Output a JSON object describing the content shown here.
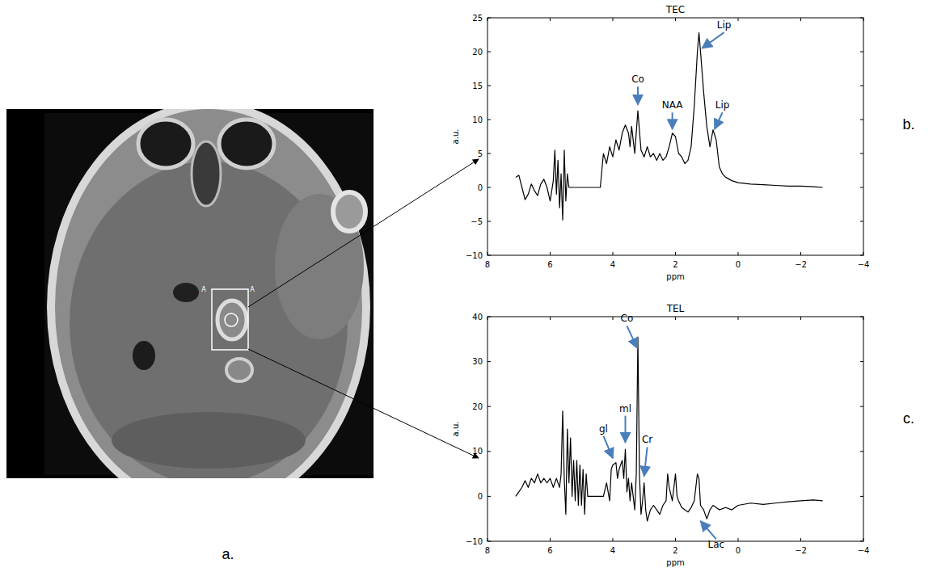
{
  "chart_data": [
    {
      "type": "line",
      "title": "TEC",
      "x_label": "ppm",
      "y_label": "a.u.",
      "color": "#000000",
      "grid": false,
      "xlim": [
        8,
        -4
      ],
      "ylim": [
        -10,
        25
      ],
      "xticks": [
        8,
        6,
        4,
        2,
        0,
        {
          "value": -2,
          "label": "−2"
        },
        {
          "value": -4,
          "label": "−4"
        }
      ],
      "yticks": [
        {
          "value": -10,
          "label": "−10"
        },
        {
          "value": -5,
          "label": "−5"
        },
        0,
        5,
        10,
        15,
        20,
        25
      ],
      "x": [
        7.1,
        7.0,
        6.9,
        6.8,
        6.7,
        6.6,
        6.5,
        6.4,
        6.3,
        6.2,
        6.1,
        6.0,
        5.9,
        5.85,
        5.8,
        5.75,
        5.7,
        5.65,
        5.6,
        5.55,
        5.5,
        5.45,
        5.4,
        4.4,
        4.3,
        4.2,
        4.1,
        4.0,
        3.9,
        3.8,
        3.7,
        3.6,
        3.5,
        3.45,
        3.4,
        3.3,
        3.2,
        3.1,
        3.0,
        2.9,
        2.8,
        2.7,
        2.6,
        2.5,
        2.4,
        2.3,
        2.2,
        2.1,
        2.0,
        1.9,
        1.8,
        1.7,
        1.6,
        1.5,
        1.4,
        1.3,
        1.25,
        1.2,
        1.1,
        1.0,
        0.9,
        0.8,
        0.7,
        0.6,
        0.5,
        0.4,
        0.2,
        0,
        -0.4,
        -0.8,
        -1.2,
        -1.6,
        -2.0,
        -2.4,
        -2.7
      ],
      "values": [
        1.5,
        1.8,
        0,
        -1.8,
        -1,
        0.5,
        -0.5,
        -1.2,
        0.5,
        1.2,
        0,
        -2,
        1,
        5.5,
        -1,
        4,
        -3,
        2,
        -4.8,
        5.5,
        -2,
        2,
        0,
        0,
        5,
        3.5,
        6,
        4.5,
        7,
        5.5,
        8,
        9.2,
        8,
        6,
        9,
        5,
        11.3,
        5.5,
        4.5,
        6,
        4.5,
        5,
        4,
        5,
        4,
        4.5,
        6,
        8,
        7.5,
        5,
        4.5,
        3.5,
        4,
        6,
        12,
        20,
        22.8,
        20,
        14,
        9,
        6,
        8.5,
        7,
        3,
        2,
        1.5,
        1,
        0.7,
        0.5,
        0.4,
        0.3,
        0.2,
        0.2,
        0.1,
        0
      ],
      "annotations": [
        {
          "text": "Co",
          "x": 3.2,
          "y": 12.2,
          "xytext": [
            3.2,
            15.2
          ]
        },
        {
          "text": "NAA",
          "x": 2.1,
          "y": 8.6,
          "xytext": [
            2.1,
            11.4
          ]
        },
        {
          "text": "Lip",
          "x": 1.15,
          "y": 20.5,
          "xytext": [
            0.45,
            23.2
          ]
        },
        {
          "text": "Lip",
          "x": 0.75,
          "y": 8.6,
          "xytext": [
            0.5,
            11.4
          ]
        }
      ]
    },
    {
      "type": "line",
      "title": "TEL",
      "x_label": "ppm",
      "y_label": "a.u.",
      "color": "#000000",
      "grid": false,
      "xlim": [
        8,
        -4
      ],
      "ylim": [
        -10,
        40
      ],
      "xticks": [
        8,
        6,
        4,
        2,
        0,
        {
          "value": -2,
          "label": "−2"
        },
        {
          "value": -4,
          "label": "−4"
        }
      ],
      "yticks": [
        {
          "value": -10,
          "label": "−10"
        },
        0,
        10,
        20,
        30,
        40
      ],
      "x": [
        7.1,
        7.0,
        6.9,
        6.8,
        6.7,
        6.6,
        6.5,
        6.4,
        6.3,
        6.2,
        6.1,
        6.0,
        5.9,
        5.8,
        5.7,
        5.65,
        5.6,
        5.55,
        5.5,
        5.45,
        5.4,
        5.35,
        5.3,
        5.25,
        5.2,
        5.15,
        5.1,
        5.05,
        5.0,
        4.95,
        4.9,
        4.85,
        4.8,
        4.3,
        4.2,
        4.1,
        4.05,
        4.0,
        3.9,
        3.85,
        3.8,
        3.7,
        3.65,
        3.6,
        3.55,
        3.5,
        3.45,
        3.4,
        3.3,
        3.25,
        3.2,
        3.15,
        3.1,
        3.05,
        3.0,
        2.95,
        2.9,
        2.8,
        2.7,
        2.6,
        2.5,
        2.4,
        2.3,
        2.25,
        2.2,
        2.1,
        2.0,
        1.95,
        1.9,
        1.8,
        1.7,
        1.6,
        1.5,
        1.4,
        1.3,
        1.25,
        1.2,
        1.1,
        1.0,
        0.9,
        0.8,
        0.6,
        0.4,
        0.2,
        0,
        -0.4,
        -0.8,
        -1.2,
        -1.6,
        -2.0,
        -2.4,
        -2.7
      ],
      "values": [
        0,
        1,
        2,
        3.5,
        2,
        4,
        3,
        5,
        3,
        4,
        3,
        4,
        2,
        4,
        2,
        5,
        19,
        4,
        -4,
        15,
        3,
        13,
        0,
        8,
        -1,
        8,
        -2,
        7,
        -2,
        6,
        -4,
        5,
        0,
        0,
        3,
        -1,
        6,
        7,
        7.5,
        4,
        6,
        8,
        4,
        10.5,
        1,
        4,
        -1,
        3,
        -3,
        5,
        35.5,
        5,
        -4,
        -1,
        3,
        -3,
        -5.5,
        -3,
        -2,
        -3,
        -4,
        -2,
        -1,
        5,
        2,
        -1,
        5,
        0,
        -1,
        -2.5,
        -3,
        -3.5,
        -2.5,
        -1,
        5,
        4,
        -2,
        -3,
        -5,
        -3,
        -2,
        -3,
        -2.5,
        -3,
        -2,
        -1.5,
        -1.8,
        -1.5,
        -1.2,
        -1,
        -0.8,
        -1
      ],
      "annotations": [
        {
          "text": "Co",
          "x": 3.22,
          "y": 33,
          "xytext": [
            3.55,
            38.5
          ]
        },
        {
          "text": "ml",
          "x": 3.6,
          "y": 12,
          "xytext": [
            3.6,
            18.5
          ]
        },
        {
          "text": "gl",
          "x": 4.0,
          "y": 8.5,
          "xytext": [
            4.3,
            14
          ]
        },
        {
          "text": "Cr",
          "x": 3.0,
          "y": 4.5,
          "xytext": [
            2.9,
            11.5
          ]
        },
        {
          "text": "Lac",
          "x": 1.2,
          "y": -5.5,
          "xytext": [
            0.7,
            -9
          ]
        }
      ]
    }
  ],
  "panel_labels": [
    "a.",
    "b.",
    "c."
  ],
  "image_labels": [
    "A",
    "A"
  ]
}
